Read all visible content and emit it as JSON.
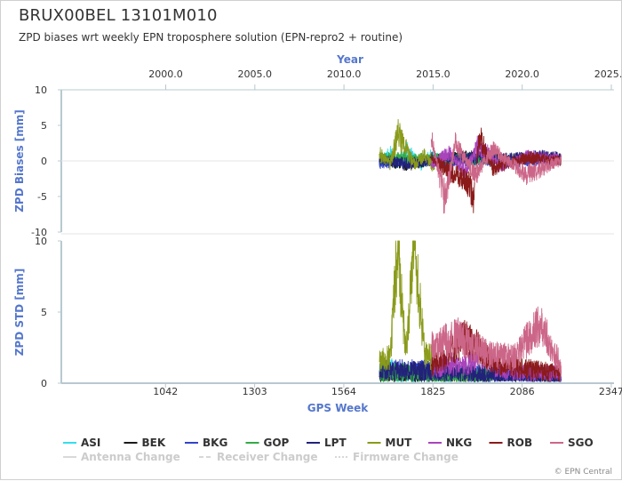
{
  "header": {
    "title": "BRUX00BEL 13101M010",
    "subtitle": "ZPD biases wrt weekly EPN troposphere solution (EPN-repro2 + routine)"
  },
  "credit": "© EPN Central",
  "chart_data": {
    "type": "line",
    "top_axis": {
      "label": "Year",
      "ticks": [
        2000.0,
        2005.0,
        2010.0,
        2015.0,
        2020.0,
        2025.0
      ],
      "tick_labels": [
        "2000.0",
        "2005.0",
        "2010.0",
        "2015.0",
        "2020.0",
        "2025.0"
      ]
    },
    "x_axis": {
      "label": "GPS Week",
      "range": [
        737,
        2355
      ],
      "ticks": [
        1042,
        1303,
        1564,
        1825,
        2086,
        2347
      ],
      "tick_labels": [
        "1042",
        "1303",
        "1564",
        "1825",
        "2086",
        "2347"
      ]
    },
    "panels": [
      {
        "name": "bias",
        "ylabel": "ZPD Biases [mm]",
        "ylim": [
          -10,
          10
        ],
        "y_ticks": [
          10,
          5,
          0,
          -5,
          -10
        ],
        "y_tick_labels": [
          "10",
          "5",
          "0",
          "-5",
          "-10"
        ],
        "zero_line": true
      },
      {
        "name": "std",
        "ylabel": "ZPD STD [mm]",
        "ylim": [
          0,
          10
        ],
        "y_ticks": [
          10,
          5,
          0
        ],
        "y_tick_labels": [
          "10",
          "5",
          "0"
        ]
      }
    ],
    "series": [
      {
        "name": "ASI",
        "color": "#33ddee",
        "x_range": [
          1668,
          1880
        ],
        "bias_points": [
          [
            1668,
            0.0
          ],
          [
            1700,
            1.0
          ],
          [
            1720,
            -0.3
          ],
          [
            1750,
            1.5
          ],
          [
            1790,
            -0.5
          ],
          [
            1820,
            0.8
          ],
          [
            1850,
            0.2
          ],
          [
            1880,
            0.5
          ]
        ],
        "std_points": [
          [
            1668,
            0.8
          ],
          [
            1700,
            1.1
          ],
          [
            1730,
            0.5
          ],
          [
            1760,
            0.6
          ],
          [
            1800,
            0.4
          ],
          [
            1840,
            0.3
          ],
          [
            1880,
            0.3
          ]
        ]
      },
      {
        "name": "BEK",
        "color": "#1a1a1a",
        "x_range": [
          1668,
          2200
        ],
        "bias_points": [
          [
            1668,
            0.0
          ],
          [
            1750,
            -0.5
          ],
          [
            1850,
            0.3
          ],
          [
            1950,
            0.6
          ],
          [
            2050,
            0.2
          ],
          [
            2150,
            0.4
          ],
          [
            2200,
            0.3
          ]
        ],
        "std_points": [
          [
            1668,
            0.5
          ],
          [
            1750,
            0.6
          ],
          [
            1850,
            0.5
          ],
          [
            1950,
            0.5
          ],
          [
            2050,
            0.4
          ],
          [
            2150,
            0.5
          ],
          [
            2200,
            0.4
          ]
        ]
      },
      {
        "name": "BKG",
        "color": "#3344cc",
        "x_range": [
          1668,
          2200
        ],
        "bias_points": [
          [
            1668,
            -0.3
          ],
          [
            1760,
            0.0
          ],
          [
            1860,
            -0.2
          ],
          [
            1960,
            0.1
          ],
          [
            2060,
            -0.2
          ],
          [
            2160,
            0.2
          ],
          [
            2200,
            0.0
          ]
        ],
        "std_points": [
          [
            1668,
            0.9
          ],
          [
            1760,
            1.0
          ],
          [
            1860,
            0.8
          ],
          [
            1960,
            0.6
          ],
          [
            2060,
            0.5
          ],
          [
            2160,
            0.6
          ],
          [
            2200,
            0.5
          ]
        ]
      },
      {
        "name": "GOP",
        "color": "#33aa44",
        "x_range": [
          1668,
          2000
        ],
        "bias_points": [
          [
            1668,
            0.3
          ],
          [
            1740,
            0.5
          ],
          [
            1800,
            0.2
          ],
          [
            1880,
            0.4
          ],
          [
            1950,
            0.1
          ],
          [
            2000,
            0.2
          ]
        ],
        "std_points": [
          [
            1668,
            0.7
          ],
          [
            1740,
            0.8
          ],
          [
            1800,
            0.7
          ],
          [
            1880,
            0.6
          ],
          [
            1950,
            0.5
          ],
          [
            2000,
            0.5
          ]
        ]
      },
      {
        "name": "LPT",
        "color": "#22227a",
        "x_range": [
          1668,
          2200
        ],
        "bias_points": [
          [
            1668,
            0.2
          ],
          [
            1750,
            -0.4
          ],
          [
            1850,
            0.2
          ],
          [
            1950,
            0.4
          ],
          [
            2050,
            0.3
          ],
          [
            2150,
            0.6
          ],
          [
            2200,
            0.4
          ]
        ],
        "std_points": [
          [
            1668,
            0.8
          ],
          [
            1750,
            0.9
          ],
          [
            1850,
            0.8
          ],
          [
            1950,
            0.7
          ],
          [
            2050,
            0.6
          ],
          [
            2150,
            0.6
          ],
          [
            2200,
            0.5
          ]
        ]
      },
      {
        "name": "MUT",
        "color": "#8a9a1a",
        "x_range": [
          1668,
          1830
        ],
        "bias_points": [
          [
            1668,
            1.0
          ],
          [
            1700,
            -0.5
          ],
          [
            1722,
            4.0
          ],
          [
            1745,
            1.8
          ],
          [
            1770,
            -0.5
          ],
          [
            1800,
            0.8
          ],
          [
            1830,
            -1.0
          ]
        ],
        "std_points": [
          [
            1668,
            1.5
          ],
          [
            1700,
            1.8
          ],
          [
            1722,
            10.0
          ],
          [
            1745,
            2.0
          ],
          [
            1770,
            10.0
          ],
          [
            1800,
            2.2
          ],
          [
            1830,
            1.5
          ]
        ]
      },
      {
        "name": "NKG",
        "color": "#aa44bb",
        "x_range": [
          1820,
          2200
        ],
        "bias_points": [
          [
            1820,
            -0.5
          ],
          [
            1870,
            1.2
          ],
          [
            1920,
            -1.5
          ],
          [
            1960,
            2.5
          ],
          [
            2020,
            -0.8
          ],
          [
            2100,
            0.6
          ],
          [
            2200,
            0.2
          ]
        ],
        "std_points": [
          [
            1820,
            1.0
          ],
          [
            1870,
            1.4
          ],
          [
            1920,
            1.2
          ],
          [
            1960,
            2.0
          ],
          [
            2020,
            1.0
          ],
          [
            2100,
            0.8
          ],
          [
            2200,
            0.6
          ]
        ]
      },
      {
        "name": "ROB",
        "color": "#8b1a1a",
        "x_range": [
          1820,
          2200
        ],
        "bias_points": [
          [
            1820,
            0.5
          ],
          [
            1870,
            -1.5
          ],
          [
            1920,
            -2.5
          ],
          [
            1945,
            -4.8
          ],
          [
            1960,
            3.5
          ],
          [
            2000,
            -1.0
          ],
          [
            2100,
            0.5
          ],
          [
            2200,
            0.0
          ]
        ],
        "std_points": [
          [
            1820,
            1.2
          ],
          [
            1870,
            2.0
          ],
          [
            1920,
            3.2
          ],
          [
            1960,
            2.5
          ],
          [
            2000,
            1.5
          ],
          [
            2100,
            1.0
          ],
          [
            2200,
            0.7
          ]
        ]
      },
      {
        "name": "SGO",
        "color": "#cc6688",
        "x_range": [
          1820,
          2200
        ],
        "bias_points": [
          [
            1820,
            3.0
          ],
          [
            1860,
            -5.5
          ],
          [
            1890,
            2.5
          ],
          [
            1950,
            -2.0
          ],
          [
            2000,
            1.5
          ],
          [
            2060,
            -0.5
          ],
          [
            2100,
            -2.0
          ],
          [
            2200,
            0.0
          ]
        ],
        "std_points": [
          [
            1820,
            2.5
          ],
          [
            1860,
            3.0
          ],
          [
            1900,
            3.3
          ],
          [
            1950,
            2.5
          ],
          [
            2000,
            2.0
          ],
          [
            2060,
            1.8
          ],
          [
            2140,
            4.2
          ],
          [
            2200,
            1.2
          ]
        ]
      }
    ],
    "legend": {
      "placement": "bottom",
      "change_markers": [
        {
          "name": "Antenna Change",
          "style": "solid",
          "color": "#cccccc"
        },
        {
          "name": "Receiver Change",
          "style": "dashed",
          "color": "#cccccc"
        },
        {
          "name": "Firmware Change",
          "style": "dotted",
          "color": "#cccccc"
        }
      ]
    },
    "grid": false
  }
}
